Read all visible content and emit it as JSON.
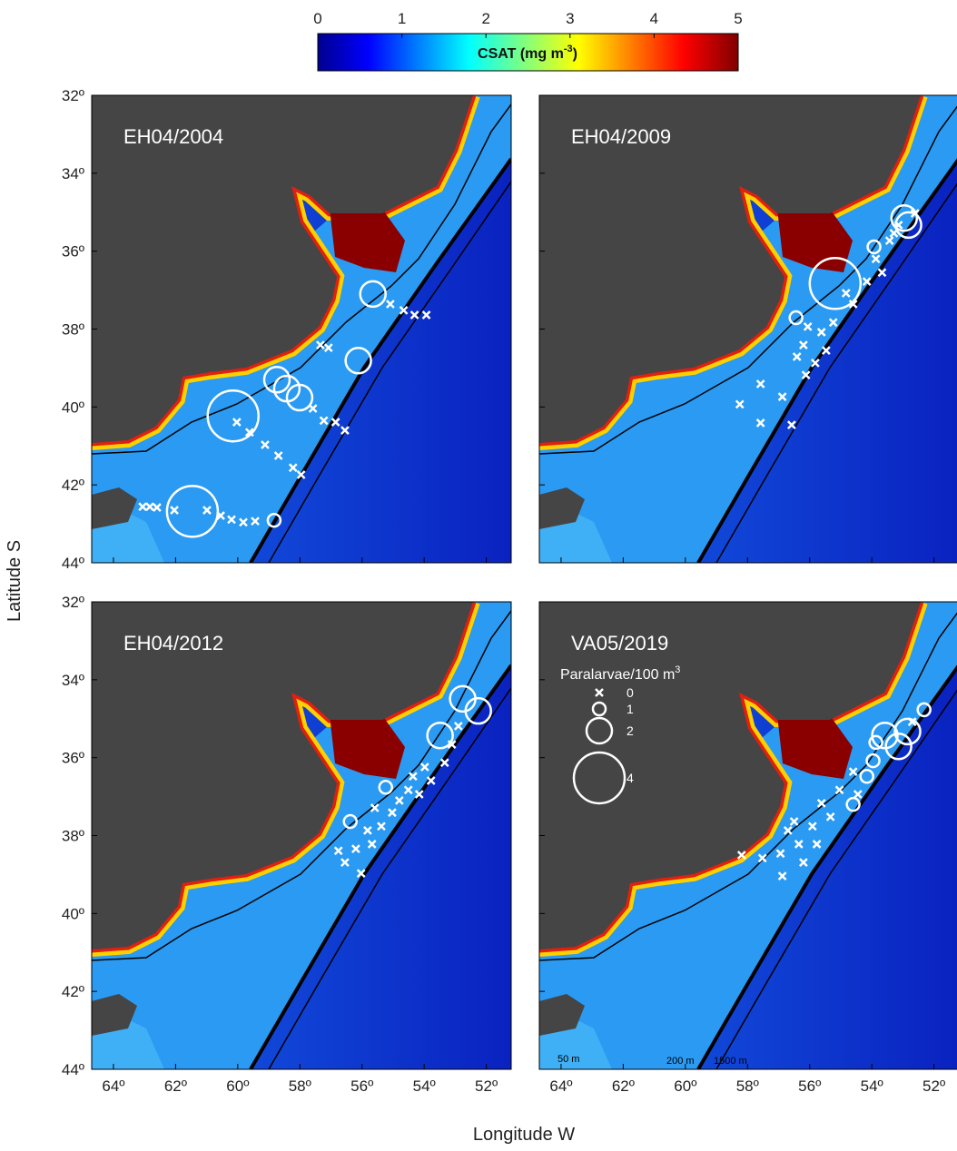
{
  "colorbar": {
    "label": "CSAT (mg m",
    "label_sup": "-3",
    "label_end": ")",
    "lim": [
      0,
      5
    ],
    "ticks": [
      0,
      1,
      2,
      3,
      4,
      5
    ]
  },
  "axes": {
    "xlabel": "Longitude W",
    "ylabel": "Latitude S",
    "xlim": [
      64.7,
      51.2
    ],
    "ylim": [
      32,
      44
    ],
    "xticks": [
      {
        "value": 64,
        "label": "64º"
      },
      {
        "value": 62,
        "label": "62º"
      },
      {
        "value": 60,
        "label": "60º"
      },
      {
        "value": 58,
        "label": "58º"
      },
      {
        "value": 56,
        "label": "56º"
      },
      {
        "value": 54,
        "label": "54º"
      },
      {
        "value": 52,
        "label": "52º"
      }
    ],
    "yticks": [
      {
        "value": 32,
        "label": "32º"
      },
      {
        "value": 34,
        "label": "34º"
      },
      {
        "value": 36,
        "label": "36º"
      },
      {
        "value": 38,
        "label": "38º"
      },
      {
        "value": 40,
        "label": "40º"
      },
      {
        "value": 42,
        "label": "42º"
      },
      {
        "value": 44,
        "label": "44º"
      }
    ]
  },
  "legend": {
    "title": "Paralarvae/100 m",
    "title_sup": "3",
    "sizes": [
      0,
      1,
      2,
      4
    ]
  },
  "isobaths": [
    "50 m",
    "200 m",
    "1500 m"
  ],
  "panels": [
    {
      "title": "EH04/2004",
      "stations": [
        [
          63.06,
          42.56,
          0
        ],
        [
          62.83,
          42.56,
          0
        ],
        [
          62.6,
          42.58,
          0
        ],
        [
          62.04,
          42.65,
          0
        ],
        [
          61.46,
          42.68,
          4
        ],
        [
          60.99,
          42.65,
          0
        ],
        [
          60.55,
          42.79,
          0
        ],
        [
          60.2,
          42.89,
          0
        ],
        [
          59.82,
          42.96,
          0
        ],
        [
          59.44,
          42.93,
          0
        ],
        [
          58.83,
          42.91,
          1
        ],
        [
          60.15,
          40.23,
          4
        ],
        [
          60.03,
          40.39,
          0
        ],
        [
          59.62,
          40.65,
          0
        ],
        [
          59.12,
          40.97,
          0
        ],
        [
          58.69,
          41.25,
          0
        ],
        [
          58.22,
          41.56,
          0
        ],
        [
          57.96,
          41.74,
          0
        ],
        [
          58.74,
          39.3,
          2
        ],
        [
          58.42,
          39.53,
          2
        ],
        [
          58.01,
          39.76,
          2
        ],
        [
          57.58,
          40.04,
          0
        ],
        [
          57.23,
          40.35,
          0
        ],
        [
          56.85,
          40.39,
          0
        ],
        [
          56.55,
          40.6,
          0
        ],
        [
          57.34,
          38.41,
          0
        ],
        [
          57.08,
          38.48,
          0
        ],
        [
          56.12,
          38.81,
          2
        ],
        [
          55.65,
          37.1,
          2
        ],
        [
          55.09,
          37.36,
          0
        ],
        [
          54.66,
          37.52,
          0
        ],
        [
          54.31,
          37.64,
          0
        ],
        [
          53.93,
          37.64,
          0
        ]
      ]
    },
    {
      "title": "EH04/2009",
      "stations": [
        [
          58.25,
          39.93,
          0
        ],
        [
          57.58,
          40.41,
          0
        ],
        [
          57.58,
          39.41,
          0
        ],
        [
          56.88,
          39.74,
          0
        ],
        [
          56.58,
          40.46,
          0
        ],
        [
          56.41,
          38.71,
          0
        ],
        [
          56.2,
          38.41,
          0
        ],
        [
          56.12,
          39.18,
          0
        ],
        [
          56.06,
          37.94,
          0
        ],
        [
          56.44,
          37.71,
          1
        ],
        [
          55.82,
          38.87,
          0
        ],
        [
          55.62,
          38.08,
          0
        ],
        [
          55.47,
          38.55,
          0
        ],
        [
          55.24,
          37.83,
          0
        ],
        [
          55.18,
          36.83,
          4
        ],
        [
          54.83,
          37.08,
          0
        ],
        [
          54.6,
          37.36,
          0
        ],
        [
          54.16,
          36.78,
          0
        ],
        [
          53.87,
          36.2,
          0
        ],
        [
          53.93,
          35.89,
          1
        ],
        [
          53.67,
          36.55,
          0
        ],
        [
          53.43,
          35.73,
          0
        ],
        [
          53.29,
          35.54,
          0
        ],
        [
          53.14,
          35.33,
          0
        ],
        [
          52.96,
          35.15,
          2
        ],
        [
          52.82,
          35.33,
          2
        ],
        [
          52.61,
          35.03,
          0
        ]
      ]
    },
    {
      "title": "EH04/2012",
      "stations": [
        [
          56.76,
          38.39,
          0
        ],
        [
          56.55,
          38.69,
          0
        ],
        [
          56.38,
          37.64,
          1
        ],
        [
          56.2,
          38.34,
          0
        ],
        [
          56.03,
          38.97,
          0
        ],
        [
          55.82,
          37.87,
          0
        ],
        [
          55.68,
          38.22,
          0
        ],
        [
          55.59,
          37.29,
          0
        ],
        [
          55.38,
          37.76,
          0
        ],
        [
          55.24,
          36.76,
          1
        ],
        [
          55.03,
          37.41,
          0
        ],
        [
          54.8,
          37.1,
          0
        ],
        [
          54.51,
          36.83,
          0
        ],
        [
          54.36,
          36.48,
          0
        ],
        [
          54.16,
          36.94,
          0
        ],
        [
          53.98,
          36.24,
          0
        ],
        [
          53.78,
          36.59,
          0
        ],
        [
          53.49,
          35.43,
          2
        ],
        [
          53.34,
          36.13,
          0
        ],
        [
          53.11,
          35.66,
          0
        ],
        [
          52.9,
          35.19,
          0
        ],
        [
          52.76,
          34.49,
          2
        ],
        [
          52.26,
          34.8,
          2
        ]
      ]
    },
    {
      "title": "VA05/2019",
      "stations": [
        [
          58.19,
          38.5,
          0
        ],
        [
          57.52,
          38.58,
          0
        ],
        [
          56.88,
          39.04,
          0
        ],
        [
          56.94,
          38.46,
          0
        ],
        [
          56.7,
          37.87,
          0
        ],
        [
          56.5,
          37.64,
          0
        ],
        [
          56.35,
          38.22,
          0
        ],
        [
          56.2,
          38.69,
          0
        ],
        [
          55.91,
          37.76,
          0
        ],
        [
          55.77,
          38.22,
          0
        ],
        [
          55.62,
          37.17,
          0
        ],
        [
          55.33,
          37.52,
          0
        ],
        [
          55.04,
          36.83,
          0
        ],
        [
          54.6,
          36.36,
          0
        ],
        [
          54.45,
          36.94,
          0
        ],
        [
          54.6,
          37.2,
          1
        ],
        [
          54.16,
          36.48,
          1
        ],
        [
          53.96,
          36.08,
          1
        ],
        [
          53.87,
          35.61,
          1
        ],
        [
          53.58,
          35.43,
          2
        ],
        [
          53.14,
          35.71,
          2
        ],
        [
          52.85,
          35.33,
          2
        ],
        [
          52.7,
          35.08,
          0
        ],
        [
          52.32,
          34.77,
          1
        ]
      ]
    }
  ]
}
